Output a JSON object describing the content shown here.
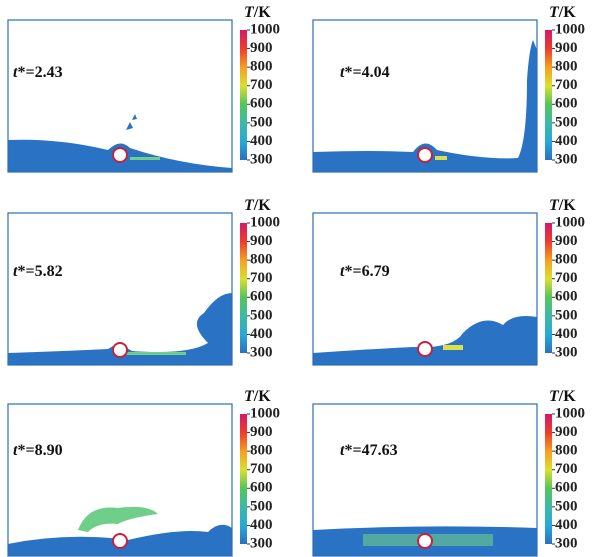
{
  "panels": [
    {
      "symbol": "t",
      "time": "*=2.43"
    },
    {
      "symbol": "t",
      "time": "*=4.04"
    },
    {
      "symbol": "t",
      "time": "*=5.82"
    },
    {
      "symbol": "t",
      "time": "*=6.79"
    },
    {
      "symbol": "t",
      "time": "*=8.90"
    },
    {
      "symbol": "t",
      "time": "*=47.63"
    }
  ],
  "colorbar": {
    "symbol": "T",
    "unit": "/K",
    "lim": [
      300,
      1000
    ],
    "ticks": [
      300,
      400,
      500,
      600,
      700,
      800,
      900,
      1000
    ]
  }
}
